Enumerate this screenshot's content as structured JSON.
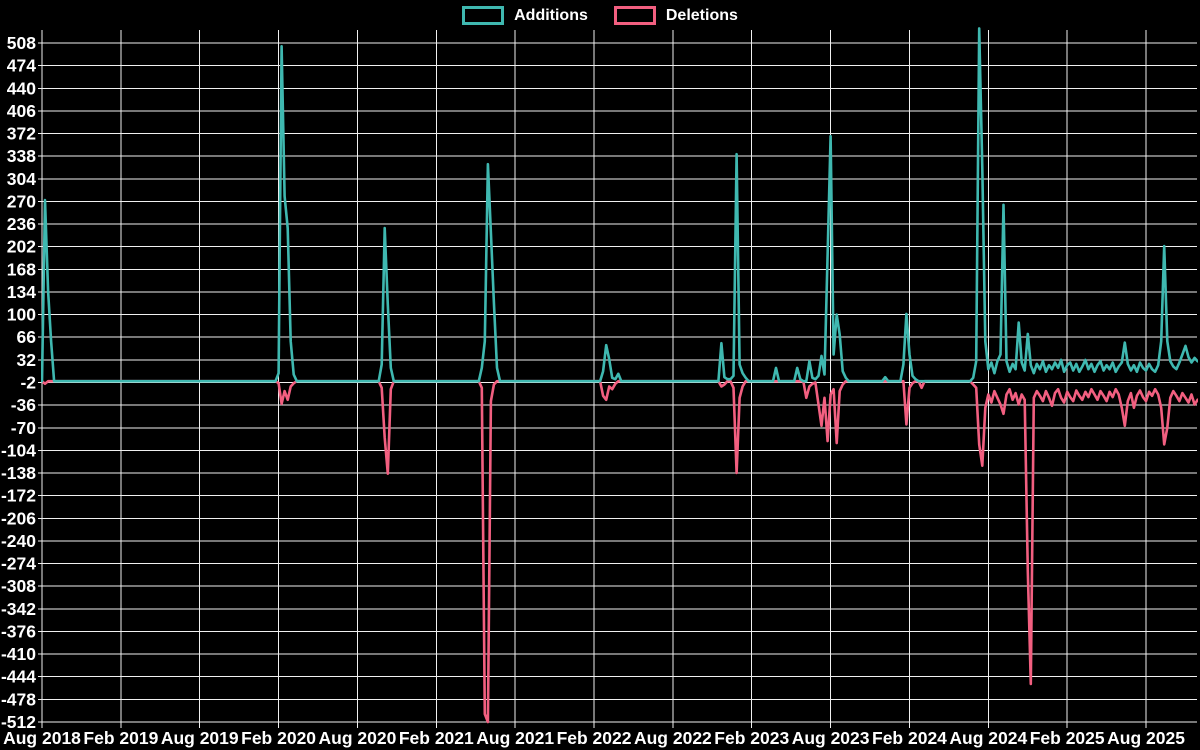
{
  "legend": {
    "additions_label": "Additions",
    "deletions_label": "Deletions"
  },
  "colors": {
    "background": "#000000",
    "grid": "#f0f0f0",
    "text": "#ffffff",
    "additions": "#3fb8b0",
    "deletions": "#f25f80"
  },
  "chart_data": {
    "type": "line",
    "title": "",
    "xlabel": "",
    "ylabel": "",
    "grid": true,
    "legend_position": "top",
    "ylim": [
      -512,
      508
    ],
    "y_tick_step": 34,
    "y_ticks": [
      508,
      474,
      440,
      406,
      372,
      338,
      304,
      270,
      236,
      202,
      168,
      134,
      100,
      66,
      32,
      -2,
      -36,
      -70,
      -104,
      -138,
      -172,
      -206,
      -240,
      -274,
      -308,
      -342,
      -376,
      -410,
      -444,
      -478,
      -512
    ],
    "x_tick_labels": [
      "Aug 2018",
      "Feb 2019",
      "Aug 2019",
      "Feb 2020",
      "Aug 2020",
      "Feb 2021",
      "Aug 2021",
      "Feb 2022",
      "Aug 2022",
      "Feb 2023",
      "Aug 2023",
      "Feb 2024",
      "Aug 2024",
      "Feb 2025",
      "Aug 2025"
    ],
    "x_unit": "weeks since Aug 2018 (26 weeks per tick interval)",
    "x_extent_weeks": 381,
    "series": [
      {
        "name": "Additions",
        "color": "#3fb8b0",
        "points": [
          [
            0,
            0
          ],
          [
            1,
            272
          ],
          [
            2,
            135
          ],
          [
            3,
            60
          ],
          [
            4,
            0
          ],
          [
            77,
            0
          ],
          [
            78,
            12
          ],
          [
            79,
            503
          ],
          [
            80,
            278
          ],
          [
            81,
            230
          ],
          [
            82,
            60
          ],
          [
            83,
            10
          ],
          [
            84,
            0
          ],
          [
            111,
            0
          ],
          [
            112,
            25
          ],
          [
            113,
            230
          ],
          [
            114,
            115
          ],
          [
            115,
            20
          ],
          [
            116,
            0
          ],
          [
            144,
            0
          ],
          [
            145,
            20
          ],
          [
            146,
            60
          ],
          [
            147,
            326
          ],
          [
            148,
            223
          ],
          [
            149,
            118
          ],
          [
            150,
            20
          ],
          [
            151,
            0
          ],
          [
            184,
            0
          ],
          [
            185,
            15
          ],
          [
            186,
            54
          ],
          [
            187,
            33
          ],
          [
            188,
            5
          ],
          [
            189,
            3
          ],
          [
            190,
            11
          ],
          [
            191,
            0
          ],
          [
            223,
            0
          ],
          [
            224,
            57
          ],
          [
            225,
            6
          ],
          [
            226,
            3
          ],
          [
            227,
            3
          ],
          [
            228,
            8
          ],
          [
            229,
            341
          ],
          [
            230,
            25
          ],
          [
            231,
            12
          ],
          [
            232,
            5
          ],
          [
            233,
            0
          ],
          [
            241,
            0
          ],
          [
            242,
            20
          ],
          [
            243,
            0
          ],
          [
            248,
            0
          ],
          [
            249,
            20
          ],
          [
            250,
            3
          ],
          [
            251,
            0
          ],
          [
            252,
            0
          ],
          [
            253,
            30
          ],
          [
            254,
            5
          ],
          [
            255,
            3
          ],
          [
            256,
            8
          ],
          [
            257,
            38
          ],
          [
            258,
            10
          ],
          [
            259,
            190
          ],
          [
            260,
            368
          ],
          [
            261,
            40
          ],
          [
            262,
            100
          ],
          [
            263,
            70
          ],
          [
            264,
            15
          ],
          [
            265,
            5
          ],
          [
            266,
            0
          ],
          [
            277,
            0
          ],
          [
            278,
            6
          ],
          [
            279,
            0
          ],
          [
            283,
            0
          ],
          [
            284,
            25
          ],
          [
            285,
            101
          ],
          [
            286,
            40
          ],
          [
            287,
            8
          ],
          [
            288,
            3
          ],
          [
            289,
            0
          ],
          [
            306,
            0
          ],
          [
            307,
            5
          ],
          [
            308,
            30
          ],
          [
            309,
            530
          ],
          [
            310,
            320
          ],
          [
            311,
            60
          ],
          [
            312,
            18
          ],
          [
            313,
            28
          ],
          [
            314,
            12
          ],
          [
            315,
            30
          ],
          [
            316,
            40
          ],
          [
            317,
            265
          ],
          [
            318,
            30
          ],
          [
            319,
            14
          ],
          [
            320,
            26
          ],
          [
            321,
            18
          ],
          [
            322,
            88
          ],
          [
            323,
            28
          ],
          [
            324,
            16
          ],
          [
            325,
            71
          ],
          [
            326,
            24
          ],
          [
            327,
            12
          ],
          [
            328,
            26
          ],
          [
            329,
            18
          ],
          [
            330,
            30
          ],
          [
            331,
            14
          ],
          [
            332,
            24
          ],
          [
            333,
            18
          ],
          [
            334,
            28
          ],
          [
            335,
            20
          ],
          [
            336,
            32
          ],
          [
            337,
            14
          ],
          [
            338,
            24
          ],
          [
            339,
            28
          ],
          [
            340,
            16
          ],
          [
            341,
            26
          ],
          [
            342,
            14
          ],
          [
            343,
            22
          ],
          [
            344,
            32
          ],
          [
            345,
            18
          ],
          [
            346,
            26
          ],
          [
            347,
            14
          ],
          [
            348,
            24
          ],
          [
            349,
            30
          ],
          [
            350,
            16
          ],
          [
            351,
            24
          ],
          [
            352,
            18
          ],
          [
            353,
            28
          ],
          [
            354,
            14
          ],
          [
            355,
            22
          ],
          [
            356,
            28
          ],
          [
            357,
            58
          ],
          [
            358,
            26
          ],
          [
            359,
            16
          ],
          [
            360,
            24
          ],
          [
            361,
            14
          ],
          [
            362,
            28
          ],
          [
            363,
            20
          ],
          [
            364,
            16
          ],
          [
            365,
            26
          ],
          [
            366,
            18
          ],
          [
            367,
            14
          ],
          [
            368,
            24
          ],
          [
            369,
            60
          ],
          [
            370,
            203
          ],
          [
            371,
            60
          ],
          [
            372,
            30
          ],
          [
            373,
            22
          ],
          [
            374,
            18
          ],
          [
            375,
            28
          ],
          [
            376,
            40
          ],
          [
            377,
            53
          ],
          [
            378,
            36
          ],
          [
            379,
            28
          ],
          [
            380,
            35
          ],
          [
            381,
            30
          ]
        ]
      },
      {
        "name": "Deletions",
        "color": "#f25f80",
        "points": [
          [
            0,
            0
          ],
          [
            1,
            -4
          ],
          [
            2,
            0
          ],
          [
            77,
            0
          ],
          [
            78,
            -3
          ],
          [
            79,
            -34
          ],
          [
            80,
            -15
          ],
          [
            81,
            -28
          ],
          [
            82,
            -8
          ],
          [
            83,
            -3
          ],
          [
            84,
            0
          ],
          [
            111,
            0
          ],
          [
            112,
            -10
          ],
          [
            113,
            -85
          ],
          [
            114,
            -139
          ],
          [
            115,
            -12
          ],
          [
            116,
            0
          ],
          [
            144,
            0
          ],
          [
            145,
            -10
          ],
          [
            146,
            -500
          ],
          [
            147,
            -512
          ],
          [
            148,
            -30
          ],
          [
            149,
            -5
          ],
          [
            150,
            0
          ],
          [
            184,
            0
          ],
          [
            185,
            -22
          ],
          [
            186,
            -28
          ],
          [
            187,
            -8
          ],
          [
            188,
            -12
          ],
          [
            189,
            -4
          ],
          [
            190,
            0
          ],
          [
            223,
            0
          ],
          [
            224,
            -8
          ],
          [
            225,
            -5
          ],
          [
            226,
            0
          ],
          [
            227,
            0
          ],
          [
            228,
            -10
          ],
          [
            229,
            -138
          ],
          [
            230,
            -25
          ],
          [
            231,
            -8
          ],
          [
            232,
            0
          ],
          [
            251,
            0
          ],
          [
            252,
            -25
          ],
          [
            253,
            -8
          ],
          [
            254,
            -4
          ],
          [
            255,
            -2
          ],
          [
            256,
            -35
          ],
          [
            257,
            -67
          ],
          [
            258,
            -25
          ],
          [
            259,
            -90
          ],
          [
            260,
            -20
          ],
          [
            261,
            -12
          ],
          [
            262,
            -93
          ],
          [
            263,
            -15
          ],
          [
            264,
            -5
          ],
          [
            265,
            0
          ],
          [
            284,
            0
          ],
          [
            285,
            -65
          ],
          [
            286,
            -10
          ],
          [
            287,
            -3
          ],
          [
            288,
            0
          ],
          [
            289,
            0
          ],
          [
            290,
            -10
          ],
          [
            291,
            0
          ],
          [
            306,
            0
          ],
          [
            307,
            -5
          ],
          [
            308,
            -10
          ],
          [
            309,
            -95
          ],
          [
            310,
            -127
          ],
          [
            311,
            -40
          ],
          [
            312,
            -20
          ],
          [
            313,
            -32
          ],
          [
            314,
            -15
          ],
          [
            315,
            -25
          ],
          [
            316,
            -35
          ],
          [
            317,
            -49
          ],
          [
            318,
            -20
          ],
          [
            319,
            -12
          ],
          [
            320,
            -28
          ],
          [
            321,
            -18
          ],
          [
            322,
            -35
          ],
          [
            323,
            -20
          ],
          [
            324,
            -28
          ],
          [
            325,
            -285
          ],
          [
            326,
            -455
          ],
          [
            327,
            -25
          ],
          [
            328,
            -15
          ],
          [
            329,
            -22
          ],
          [
            330,
            -30
          ],
          [
            331,
            -15
          ],
          [
            332,
            -25
          ],
          [
            333,
            -37
          ],
          [
            334,
            -18
          ],
          [
            335,
            -12
          ],
          [
            336,
            -25
          ],
          [
            337,
            -32
          ],
          [
            338,
            -16
          ],
          [
            339,
            -24
          ],
          [
            340,
            -30
          ],
          [
            341,
            -14
          ],
          [
            342,
            -22
          ],
          [
            343,
            -28
          ],
          [
            344,
            -16
          ],
          [
            345,
            -24
          ],
          [
            346,
            -12
          ],
          [
            347,
            -20
          ],
          [
            348,
            -28
          ],
          [
            349,
            -15
          ],
          [
            350,
            -22
          ],
          [
            351,
            -30
          ],
          [
            352,
            -16
          ],
          [
            353,
            -24
          ],
          [
            354,
            -12
          ],
          [
            355,
            -20
          ],
          [
            356,
            -40
          ],
          [
            357,
            -67
          ],
          [
            358,
            -30
          ],
          [
            359,
            -18
          ],
          [
            360,
            -40
          ],
          [
            361,
            -22
          ],
          [
            362,
            -14
          ],
          [
            363,
            -24
          ],
          [
            364,
            -30
          ],
          [
            365,
            -16
          ],
          [
            366,
            -22
          ],
          [
            367,
            -12
          ],
          [
            368,
            -20
          ],
          [
            369,
            -40
          ],
          [
            370,
            -95
          ],
          [
            371,
            -70
          ],
          [
            372,
            -25
          ],
          [
            373,
            -15
          ],
          [
            374,
            -22
          ],
          [
            375,
            -30
          ],
          [
            376,
            -18
          ],
          [
            377,
            -25
          ],
          [
            378,
            -32
          ],
          [
            379,
            -20
          ],
          [
            380,
            -35
          ],
          [
            381,
            -28
          ]
        ]
      }
    ]
  }
}
